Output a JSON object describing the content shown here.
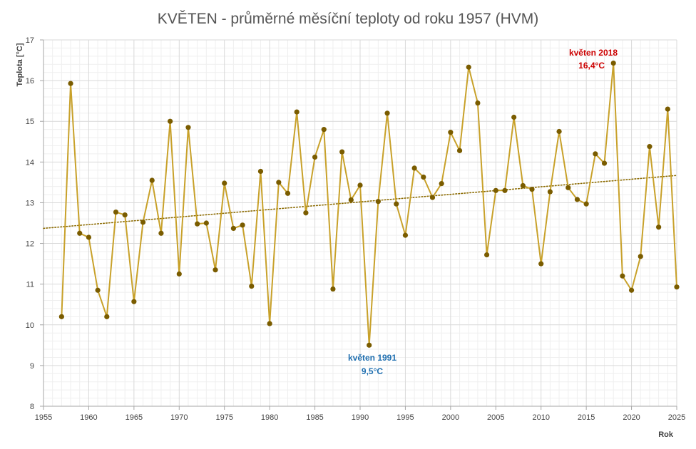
{
  "chart_data": {
    "type": "line",
    "title": "KVĚTEN - průměrné měsíční teploty od roku 1957 (HVM)",
    "xlabel": "Rok",
    "ylabel": "Teplota [°C]",
    "xlim": [
      1955,
      2025
    ],
    "ylim": [
      8,
      17
    ],
    "x_ticks": [
      1955,
      1960,
      1965,
      1970,
      1975,
      1980,
      1985,
      1990,
      1995,
      2000,
      2005,
      2010,
      2015,
      2020,
      2025
    ],
    "y_ticks": [
      8,
      9,
      10,
      11,
      12,
      13,
      14,
      15,
      16,
      17
    ],
    "grid": true,
    "line_color": "#c8a12a",
    "marker_color": "#7a5c00",
    "trend_color": "#8b6a00",
    "series": [
      {
        "x": [
          1957,
          1958,
          1959,
          1960,
          1961,
          1962,
          1963,
          1964,
          1965,
          1966,
          1967,
          1968,
          1969,
          1970,
          1971,
          1972,
          1973,
          1974,
          1975,
          1976,
          1977,
          1978,
          1979,
          1980,
          1981,
          1982,
          1983,
          1984,
          1985,
          1986,
          1987,
          1988,
          1989,
          1990,
          1991,
          1992,
          1993,
          1994,
          1995,
          1996,
          1997,
          1998,
          1999,
          2000,
          2001,
          2002,
          2003,
          2004,
          2005,
          2006,
          2007,
          2008,
          2009,
          2010,
          2011,
          2012,
          2013,
          2014,
          2015,
          2016,
          2017,
          2018,
          2019,
          2020,
          2021,
          2022,
          2023,
          2024,
          2025
        ],
        "values": [
          10.2,
          15.93,
          12.25,
          12.15,
          10.85,
          10.2,
          12.77,
          12.7,
          10.57,
          12.52,
          13.55,
          12.25,
          15.0,
          11.25,
          14.85,
          12.48,
          12.5,
          11.35,
          13.48,
          12.37,
          12.45,
          10.95,
          13.77,
          10.03,
          13.5,
          13.23,
          15.23,
          12.75,
          14.12,
          14.8,
          10.88,
          14.25,
          13.07,
          13.43,
          9.5,
          13.03,
          15.2,
          12.97,
          12.2,
          13.85,
          13.63,
          13.13,
          13.47,
          14.73,
          14.28,
          16.33,
          15.45,
          11.72,
          13.3,
          13.3,
          15.1,
          13.42,
          13.33,
          11.5,
          13.27,
          14.75,
          13.37,
          13.08,
          12.97,
          14.2,
          13.97,
          16.43,
          11.2,
          10.85,
          11.68,
          14.38,
          12.4,
          15.3,
          10.93
        ]
      }
    ],
    "trendline": {
      "type": "linear",
      "x_start": 1955,
      "y_start": 12.37,
      "x_end": 2025,
      "y_end": 13.67
    },
    "annotations": [
      {
        "line1": "květen 2018",
        "line2": "16,4°C",
        "color": "#cc0000"
      },
      {
        "line1": "květen 1991",
        "line2": "9,5°C",
        "color": "#1f6fb0"
      }
    ]
  }
}
